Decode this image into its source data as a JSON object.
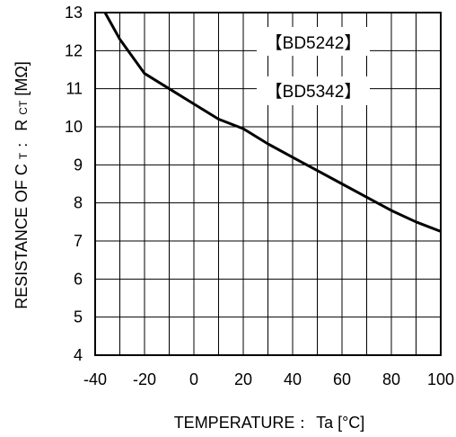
{
  "chart_data": {
    "type": "line",
    "notes": [
      "【BD5242】",
      "【BD5342】"
    ],
    "xlabel_main": "TEMPERATURE",
    "xlabel_sep": "：",
    "xlabel_symbol": "Ta",
    "xlabel_unit": "[°C]",
    "ylabel_main": "RESISTANCE OF C",
    "ylabel_sub": "T",
    "ylabel_sep": "：",
    "ylabel_symbol": "R",
    "ylabel_symbol_sub": "CT",
    "ylabel_unit": "[MΩ]",
    "xlim": [
      -40,
      100
    ],
    "ylim": [
      4,
      13
    ],
    "x_ticks": [
      -40,
      -20,
      0,
      20,
      40,
      60,
      80,
      100
    ],
    "y_ticks": [
      4,
      5,
      6,
      7,
      8,
      9,
      10,
      11,
      12,
      13
    ],
    "grid": true,
    "series": [
      {
        "x": [
          -36,
          -30,
          -20,
          -10,
          0,
          10,
          20,
          30,
          40,
          50,
          60,
          70,
          80,
          90,
          100
        ],
        "y": [
          13.0,
          12.3,
          11.4,
          11.0,
          10.6,
          10.2,
          9.95,
          9.55,
          9.2,
          8.85,
          8.5,
          8.15,
          7.8,
          7.5,
          7.25
        ]
      }
    ]
  }
}
